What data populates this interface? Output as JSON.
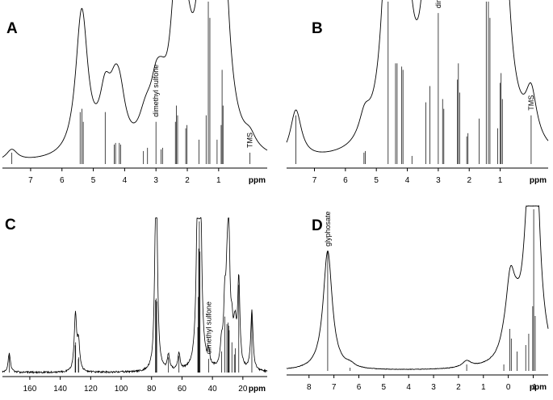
{
  "chart_data": [
    {
      "panel": "A",
      "type": "line",
      "title": "",
      "xlabel": "ppm",
      "ylabel": "",
      "x_reversed": true,
      "xlim": [
        7.9,
        -0.55
      ],
      "ylim": [
        0,
        1
      ],
      "xticks": [
        7,
        6,
        5,
        4,
        3,
        2,
        1
      ],
      "grid": false,
      "annotations": [
        {
          "text": "dimethyl sulfone",
          "x": 3.0
        },
        {
          "text": "TMS",
          "x": 0.0
        }
      ],
      "series": [
        {
          "peaks": [
            {
              "x": 7.6,
              "y": 0.07
            },
            {
              "x": 5.42,
              "y": 0.32
            },
            {
              "x": 5.36,
              "y": 0.34
            },
            {
              "x": 5.32,
              "y": 0.26
            },
            {
              "x": 4.62,
              "y": 0.32
            },
            {
              "x": 4.33,
              "y": 0.12
            },
            {
              "x": 4.29,
              "y": 0.13
            },
            {
              "x": 4.17,
              "y": 0.13
            },
            {
              "x": 4.13,
              "y": 0.12
            },
            {
              "x": 3.4,
              "y": 0.08
            },
            {
              "x": 3.27,
              "y": 0.1
            },
            {
              "x": 3.0,
              "y": 0.26
            },
            {
              "x": 2.84,
              "y": 0.09
            },
            {
              "x": 2.79,
              "y": 0.1
            },
            {
              "x": 2.38,
              "y": 0.26
            },
            {
              "x": 2.35,
              "y": 0.36
            },
            {
              "x": 2.31,
              "y": 0.3
            },
            {
              "x": 2.05,
              "y": 0.22
            },
            {
              "x": 2.01,
              "y": 0.24
            },
            {
              "x": 1.63,
              "y": 0.15
            },
            {
              "x": 1.4,
              "y": 0.3
            },
            {
              "x": 1.33,
              "y": 1.0
            },
            {
              "x": 1.28,
              "y": 0.9
            },
            {
              "x": 1.05,
              "y": 0.15
            },
            {
              "x": 0.92,
              "y": 0.24
            },
            {
              "x": 0.89,
              "y": 0.58
            },
            {
              "x": 0.86,
              "y": 0.36
            },
            {
              "x": 0.0,
              "y": 0.07
            }
          ]
        }
      ]
    },
    {
      "panel": "B",
      "type": "line",
      "title": "",
      "xlabel": "ppm",
      "ylabel": "",
      "x_reversed": true,
      "xlim": [
        7.9,
        -0.55
      ],
      "ylim": [
        0,
        1
      ],
      "xticks": [
        7,
        6,
        5,
        4,
        3,
        2,
        1
      ],
      "grid": false,
      "annotations": [
        {
          "text": "dimethyl sulfone",
          "x": 3.0
        },
        {
          "text": "TMS",
          "x": 0.0
        }
      ],
      "series": [
        {
          "peaks": [
            {
              "x": 7.6,
              "y": 0.3
            },
            {
              "x": 5.4,
              "y": 0.07
            },
            {
              "x": 5.36,
              "y": 0.08
            },
            {
              "x": 4.62,
              "y": 1.0
            },
            {
              "x": 4.38,
              "y": 0.62
            },
            {
              "x": 4.33,
              "y": 0.62
            },
            {
              "x": 4.18,
              "y": 0.6
            },
            {
              "x": 4.14,
              "y": 0.58
            },
            {
              "x": 3.85,
              "y": 0.05
            },
            {
              "x": 3.4,
              "y": 0.38
            },
            {
              "x": 3.27,
              "y": 0.48
            },
            {
              "x": 3.0,
              "y": 0.93
            },
            {
              "x": 2.86,
              "y": 0.4
            },
            {
              "x": 2.82,
              "y": 0.34
            },
            {
              "x": 2.38,
              "y": 0.52
            },
            {
              "x": 2.35,
              "y": 0.62
            },
            {
              "x": 2.31,
              "y": 0.44
            },
            {
              "x": 2.08,
              "y": 0.17
            },
            {
              "x": 2.04,
              "y": 0.19
            },
            {
              "x": 1.68,
              "y": 0.28
            },
            {
              "x": 1.45,
              "y": 1.0
            },
            {
              "x": 1.38,
              "y": 1.0
            },
            {
              "x": 1.33,
              "y": 0.9
            },
            {
              "x": 1.08,
              "y": 0.22
            },
            {
              "x": 1.0,
              "y": 0.5
            },
            {
              "x": 0.97,
              "y": 0.56
            },
            {
              "x": 0.93,
              "y": 0.4
            },
            {
              "x": 0.0,
              "y": 0.3
            }
          ]
        }
      ]
    },
    {
      "panel": "C",
      "type": "line",
      "title": "",
      "xlabel": "ppm",
      "ylabel": "",
      "x_reversed": true,
      "xlim": [
        178,
        4
      ],
      "ylim": [
        0,
        1
      ],
      "xticks": [
        160,
        140,
        120,
        100,
        80,
        60,
        40,
        20
      ],
      "grid": false,
      "annotations": [
        {
          "text": "dimethyl sulfone",
          "x": 42.5
        }
      ],
      "series": [
        {
          "peaks": [
            {
              "x": 173.5,
              "y": 0.13
            },
            {
              "x": 130.2,
              "y": 0.18
            },
            {
              "x": 129.9,
              "y": 0.2
            },
            {
              "x": 128.1,
              "y": 0.09
            },
            {
              "x": 127.9,
              "y": 0.1
            },
            {
              "x": 77.4,
              "y": 0.48
            },
            {
              "x": 77.0,
              "y": 0.49
            },
            {
              "x": 76.6,
              "y": 0.47
            },
            {
              "x": 68.9,
              "y": 0.1
            },
            {
              "x": 62.0,
              "y": 0.11
            },
            {
              "x": 49.6,
              "y": 0.3
            },
            {
              "x": 49.3,
              "y": 0.5
            },
            {
              "x": 49.0,
              "y": 0.82
            },
            {
              "x": 48.6,
              "y": 1.0
            },
            {
              "x": 48.2,
              "y": 0.8
            },
            {
              "x": 42.5,
              "y": 0.09
            },
            {
              "x": 34.0,
              "y": 0.14
            },
            {
              "x": 31.9,
              "y": 0.37
            },
            {
              "x": 30.5,
              "y": 0.32
            },
            {
              "x": 29.7,
              "y": 0.33
            },
            {
              "x": 29.3,
              "y": 0.31
            },
            {
              "x": 29.0,
              "y": 0.28
            },
            {
              "x": 27.2,
              "y": 0.2
            },
            {
              "x": 25.6,
              "y": 0.12
            },
            {
              "x": 24.9,
              "y": 0.16
            },
            {
              "x": 22.7,
              "y": 0.58
            },
            {
              "x": 14.1,
              "y": 0.4
            }
          ]
        }
      ]
    },
    {
      "panel": "D",
      "type": "line",
      "title": "",
      "xlabel": "ppm",
      "ylabel": "",
      "x_reversed": true,
      "xlim": [
        8.9,
        -1.6
      ],
      "ylim": [
        0,
        1
      ],
      "xticks": [
        8,
        7,
        6,
        5,
        4,
        3,
        2,
        1,
        0,
        -1
      ],
      "tick_labels": [
        "8",
        "7",
        "6",
        "5",
        "4",
        "3",
        "2",
        "1",
        "0",
        "-1"
      ],
      "grid": false,
      "annotations": [
        {
          "text": "glyphosate",
          "x": 7.25
        }
      ],
      "series": [
        {
          "peaks": [
            {
              "x": 7.25,
              "y": 0.74
            },
            {
              "x": 6.35,
              "y": 0.02
            },
            {
              "x": 1.67,
              "y": 0.04
            },
            {
              "x": 0.18,
              "y": 0.04
            },
            {
              "x": -0.06,
              "y": 0.26
            },
            {
              "x": -0.12,
              "y": 0.2
            },
            {
              "x": -0.35,
              "y": 0.12
            },
            {
              "x": -0.7,
              "y": 0.16
            },
            {
              "x": -0.82,
              "y": 0.23
            },
            {
              "x": -0.98,
              "y": 0.4
            },
            {
              "x": -1.02,
              "y": 1.0
            },
            {
              "x": -1.08,
              "y": 0.34
            }
          ]
        }
      ]
    }
  ]
}
